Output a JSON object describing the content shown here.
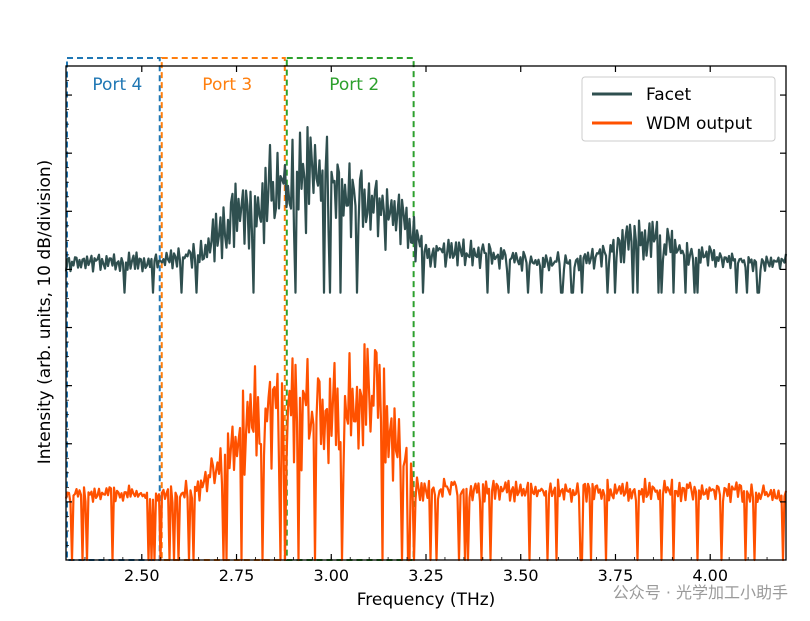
{
  "chart_data": {
    "type": "line",
    "title": "",
    "xlabel": "Frequency (THz)",
    "ylabel": "Intensity (arb. units, 10 dB/division)",
    "xlim": [
      2.3,
      4.2
    ],
    "ylim": [
      0,
      8.5
    ],
    "xticks": [
      2.5,
      2.75,
      3.0,
      3.25,
      3.5,
      3.75,
      4.0
    ],
    "xtick_labels": [
      "2.50",
      "2.75",
      "3.00",
      "3.25",
      "3.50",
      "3.75",
      "4.00"
    ],
    "yticks_minor": [
      1,
      2,
      3,
      4,
      5,
      6,
      7,
      8
    ],
    "legend": {
      "position": "top-right",
      "entries": [
        "Facet",
        "WDM output"
      ]
    },
    "regions": [
      {
        "label": "Port 4",
        "x0": 2.3,
        "x1": 2.55,
        "color": "#1f77b4"
      },
      {
        "label": "Port 3",
        "x0": 2.55,
        "x1": 2.88,
        "color": "#ff7f0e"
      },
      {
        "label": "Port 2",
        "x0": 2.88,
        "x1": 3.22,
        "color": "#2ca02c"
      }
    ],
    "series": [
      {
        "name": "Facet",
        "color": "#2f4f4f",
        "envelope": {
          "x": [
            2.3,
            2.55,
            2.65,
            2.75,
            2.85,
            2.95,
            3.05,
            3.15,
            3.25,
            3.4,
            3.55,
            3.7,
            3.8,
            3.95,
            4.1,
            4.2
          ],
          "peak": [
            5.3,
            5.3,
            5.5,
            6.6,
            7.3,
            7.7,
            7.1,
            6.7,
            5.6,
            5.5,
            5.3,
            5.4,
            6.1,
            5.5,
            5.3,
            5.3
          ],
          "floor": 4.6
        }
      },
      {
        "name": "WDM output",
        "color": "#ff5100",
        "envelope": {
          "x": [
            2.3,
            2.55,
            2.65,
            2.72,
            2.8,
            2.88,
            2.95,
            3.05,
            3.12,
            3.2,
            3.22,
            3.24,
            3.4,
            3.6,
            3.8,
            4.0,
            4.2
          ],
          "peak": [
            1.3,
            1.3,
            1.4,
            2.4,
            3.6,
            3.8,
            3.6,
            3.8,
            4.0,
            2.3,
            1.6,
            1.4,
            1.4,
            1.4,
            1.4,
            1.4,
            1.3
          ],
          "floor": 0.0
        }
      }
    ]
  },
  "watermark": "公众号 · 光学加工小助手"
}
